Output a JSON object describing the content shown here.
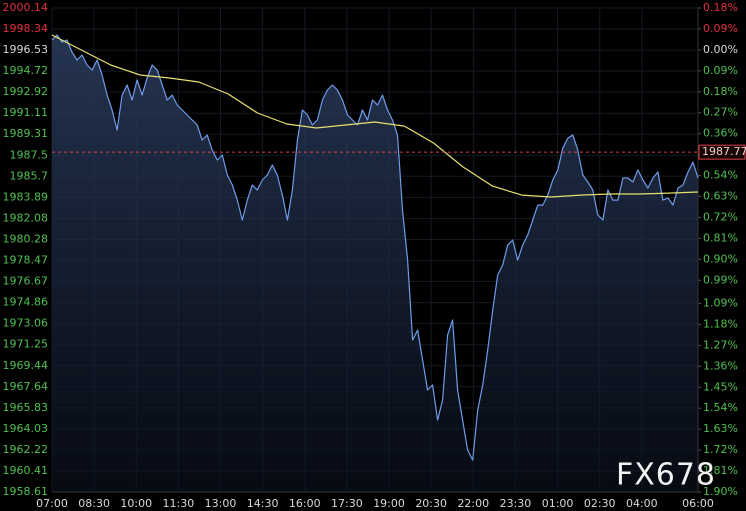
{
  "chart_data": {
    "type": "line",
    "watermark": "FX678",
    "last_price": 1987.77,
    "last_price_color": "#e0404a",
    "up_color": "#e0303a",
    "down_color": "#4fc04f",
    "flat_color": "#d8d8d8",
    "grid": true,
    "xlim": [
      0,
      1380
    ],
    "xticks": [
      {
        "value": 0,
        "label": "07:00"
      },
      {
        "value": 90,
        "label": "08:30"
      },
      {
        "value": 180,
        "label": "10:00"
      },
      {
        "value": 270,
        "label": "11:30"
      },
      {
        "value": 360,
        "label": "13:00"
      },
      {
        "value": 450,
        "label": "14:30"
      },
      {
        "value": 540,
        "label": "16:00"
      },
      {
        "value": 630,
        "label": "17:30"
      },
      {
        "value": 720,
        "label": "19:00"
      },
      {
        "value": 810,
        "label": "20:30"
      },
      {
        "value": 900,
        "label": "22:00"
      },
      {
        "value": 990,
        "label": "23:30"
      },
      {
        "value": 1080,
        "label": "01:00"
      },
      {
        "value": 1170,
        "label": "02:30"
      },
      {
        "value": 1260,
        "label": "04:00"
      },
      {
        "value": 1380,
        "label": "06:00"
      }
    ],
    "ylim": [
      1958.61,
      2000.14
    ],
    "yticks": [
      2000.14,
      1998.34,
      1996.53,
      1994.72,
      1992.92,
      1991.11,
      1989.31,
      1987.5,
      1985.7,
      1983.89,
      1982.08,
      1980.28,
      1978.47,
      1976.67,
      1974.86,
      1973.06,
      1971.25,
      1969.44,
      1967.64,
      1965.83,
      1964.03,
      1962.22,
      1960.41,
      1958.61
    ],
    "y2lim": [
      -1.9,
      0.18
    ],
    "y2ticks": [
      {
        "value": 0.18,
        "label": "0.18%"
      },
      {
        "value": 0.09,
        "label": "0.09%"
      },
      {
        "value": 0,
        "label": "0.00%"
      },
      {
        "value": -0.09,
        "label": "0.09%"
      },
      {
        "value": -0.18,
        "label": "0.18%"
      },
      {
        "value": -0.27,
        "label": "0.27%"
      },
      {
        "value": -0.36,
        "label": "0.36%"
      },
      {
        "value": -0.45,
        "label": "0.45%"
      },
      {
        "value": -0.54,
        "label": "0.54%"
      },
      {
        "value": -0.63,
        "label": "0.63%"
      },
      {
        "value": -0.72,
        "label": "0.72%"
      },
      {
        "value": -0.81,
        "label": "0.81%"
      },
      {
        "value": -0.9,
        "label": "0.90%"
      },
      {
        "value": -0.99,
        "label": "0.99%"
      },
      {
        "value": -1.09,
        "label": "1.09%"
      },
      {
        "value": -1.18,
        "label": "1.18%"
      },
      {
        "value": -1.27,
        "label": "1.27%"
      },
      {
        "value": -1.36,
        "label": "1.36%"
      },
      {
        "value": -1.45,
        "label": "1.45%"
      },
      {
        "value": -1.54,
        "label": "1.54%"
      },
      {
        "value": -1.63,
        "label": "1.63%"
      },
      {
        "value": -1.72,
        "label": "1.72%"
      },
      {
        "value": -1.81,
        "label": "1.81%"
      },
      {
        "value": -1.9,
        "label": "1.90%"
      }
    ],
    "series": [
      {
        "color": "#6f9be8",
        "fill": true,
        "values": [
          1997.39,
          1997.82,
          1997.22,
          1997.39,
          1996.36,
          1995.68,
          1996.11,
          1995.25,
          1994.82,
          1995.68,
          1994.39,
          1992.67,
          1991.39,
          1989.67,
          1992.67,
          1993.53,
          1992.25,
          1993.96,
          1992.67,
          1994.13,
          1995.25,
          1994.82,
          1993.53,
          1992.25,
          1992.67,
          1991.82,
          1991.39,
          1990.96,
          1990.53,
          1990.1,
          1988.81,
          1989.24,
          1987.95,
          1987.1,
          1987.53,
          1985.81,
          1984.95,
          1983.66,
          1981.95,
          1983.66,
          1984.95,
          1984.52,
          1985.38,
          1985.81,
          1986.67,
          1985.81,
          1984.09,
          1981.95,
          1984.52,
          1988.81,
          1991.39,
          1990.96,
          1990.1,
          1990.53,
          1992.25,
          1993.1,
          1993.53,
          1993.1,
          1992.25,
          1990.96,
          1990.53,
          1990.1,
          1991.39,
          1990.53,
          1992.25,
          1991.82,
          1992.67,
          1991.39,
          1990.53,
          1989.24,
          1982.81,
          1978.51,
          1971.65,
          1972.51,
          1969.93,
          1967.36,
          1967.79,
          1964.78,
          1966.5,
          1972.08,
          1973.37,
          1967.36,
          1964.78,
          1962.21,
          1961.35,
          1965.64,
          1967.79,
          1970.79,
          1974.22,
          1977.23,
          1978.09,
          1979.8,
          1980.23,
          1978.51,
          1979.8,
          1980.66,
          1981.95,
          1983.23,
          1983.23,
          1984.09,
          1985.38,
          1986.24,
          1988.13,
          1988.98,
          1989.24,
          1987.95,
          1985.81,
          1985.21,
          1984.52,
          1982.38,
          1981.95,
          1984.52,
          1983.66,
          1983.66,
          1985.55,
          1985.55,
          1985.21,
          1986.24,
          1985.38,
          1984.69,
          1985.55,
          1986.07,
          1983.66,
          1983.84,
          1983.23,
          1984.69,
          1984.95,
          1986.07,
          1986.92,
          1985.55
        ]
      },
      {
        "color": "#e8e070",
        "fill": false,
        "values": [
          1997.82,
          1996.54,
          1995.25,
          1994.39,
          1994.13,
          1993.79,
          1992.76,
          1991.13,
          1990.19,
          1989.84,
          1990.1,
          1990.36,
          1990.01,
          1988.55,
          1986.5,
          1984.86,
          1984.09,
          1983.92,
          1984.09,
          1984.18,
          1984.18,
          1984.26,
          1984.35
        ]
      }
    ]
  }
}
